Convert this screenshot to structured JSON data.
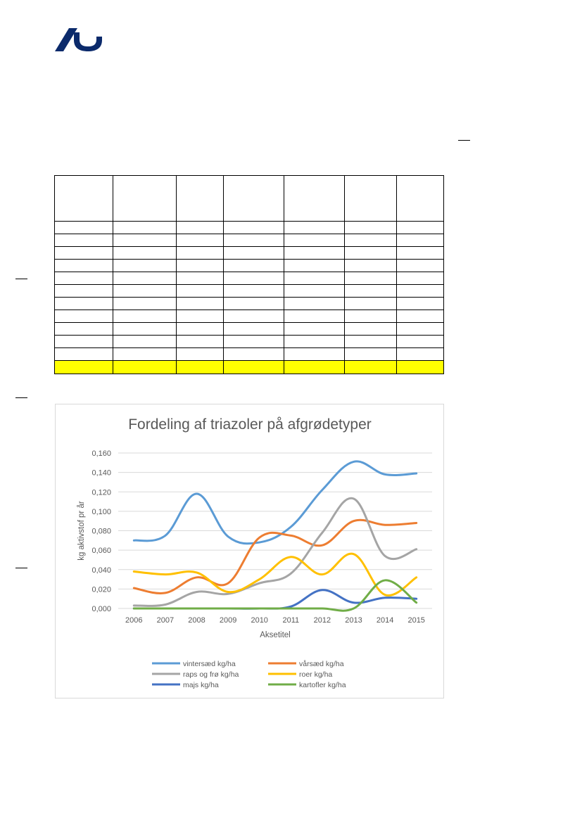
{
  "logo": {
    "name": "university-logo",
    "color": "#0b2a6b"
  },
  "table": {
    "columns": 7,
    "body_rows": 11,
    "total_row_color": "#ffff00"
  },
  "chart_data": {
    "type": "line",
    "title": "Fordeling af triazoler på afgrødetyper",
    "xlabel": "Aksetitel",
    "ylabel": "kg aktivstof  pr år",
    "categories": [
      "2006",
      "2007",
      "2008",
      "2009",
      "2010",
      "2011",
      "2012",
      "2013",
      "2014",
      "2015"
    ],
    "ylim": [
      0,
      0.16
    ],
    "yticks": [
      "0,000",
      "0,020",
      "0,040",
      "0,060",
      "0,080",
      "0,100",
      "0,120",
      "0,140",
      "0,160"
    ],
    "grid": true,
    "legend_position": "bottom",
    "series": [
      {
        "name": "vintersæd kg/ha",
        "color": "#5b9bd5",
        "values": [
          0.07,
          0.075,
          0.118,
          0.074,
          0.068,
          0.084,
          0.122,
          0.151,
          0.138,
          0.139
        ]
      },
      {
        "name": "vårsæd kg/ha",
        "color": "#ed7d31",
        "values": [
          0.021,
          0.016,
          0.032,
          0.026,
          0.073,
          0.075,
          0.065,
          0.09,
          0.086,
          0.088
        ]
      },
      {
        "name": "raps og frø kg/ha",
        "color": "#a5a5a5",
        "values": [
          0.003,
          0.004,
          0.017,
          0.015,
          0.026,
          0.036,
          0.078,
          0.113,
          0.054,
          0.061
        ]
      },
      {
        "name": "roer kg/ha",
        "color": "#ffc000",
        "values": [
          0.038,
          0.035,
          0.037,
          0.017,
          0.03,
          0.053,
          0.035,
          0.056,
          0.014,
          0.032
        ]
      },
      {
        "name": "majs kg/ha",
        "color": "#4472c4",
        "values": [
          0.0,
          0.0,
          0.0,
          0.0,
          0.0,
          0.002,
          0.019,
          0.006,
          0.011,
          0.01
        ]
      },
      {
        "name": "kartofler  kg/ha",
        "color": "#70ad47",
        "values": [
          0.0,
          0.0,
          0.0,
          0.0,
          0.0,
          0.0,
          0.0,
          0.0,
          0.029,
          0.006
        ]
      }
    ]
  }
}
